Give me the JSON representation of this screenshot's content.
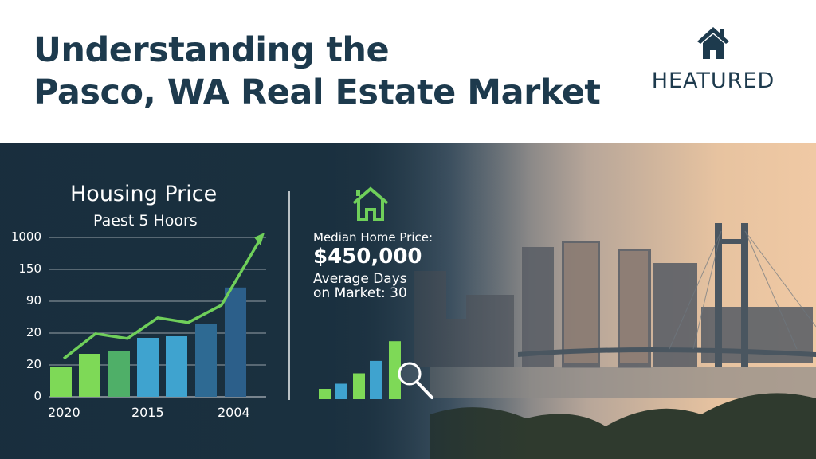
{
  "header": {
    "title_line1": "Understanding the",
    "title_line2": "Pasco, WA Real Estate Market",
    "logo": {
      "icon": "house-icon",
      "text": "HEATURED"
    }
  },
  "colors": {
    "title": "#1d3a4d",
    "accent_green": "#7ed957",
    "accent_blue": "#3fa3cf",
    "dark_blue": "#2c5f8a"
  },
  "chart_data": {
    "type": "bar",
    "title": "Housing Price",
    "subtitle": "Paest 5 Hoors",
    "y_tick_labels": [
      "0",
      "20",
      "20",
      "90",
      "150",
      "1000"
    ],
    "x_tick_labels": [
      "2020",
      "2015",
      "2004"
    ],
    "grid": true,
    "bars": {
      "values": [
        0.93,
        1.35,
        1.45,
        1.85,
        1.9,
        2.28,
        3.43
      ],
      "colors": [
        "#7ed957",
        "#7ed957",
        "#4faf68",
        "#3fa3cf",
        "#3fa3cf",
        "#2e6a93",
        "#2c5f8a"
      ]
    },
    "trend_line": {
      "values": [
        1.2,
        1.98,
        1.83,
        2.48,
        2.33,
        2.88,
        5.05
      ],
      "color": "#6fcf5a",
      "arrow": true
    }
  },
  "stats": {
    "icon": "house-outline-icon",
    "median_label": "Median Home Price:",
    "median_value": "$450,000",
    "days_line1": "Average Days",
    "days_line2": "on Market: 30",
    "mini_chart": {
      "values": [
        1,
        1.5,
        2.5,
        3.7,
        5.6
      ],
      "colors": [
        "#7ed957",
        "#3fa3cf",
        "#7ed957",
        "#3fa3cf",
        "#7ed957"
      ],
      "icon": "magnifier-icon"
    }
  }
}
